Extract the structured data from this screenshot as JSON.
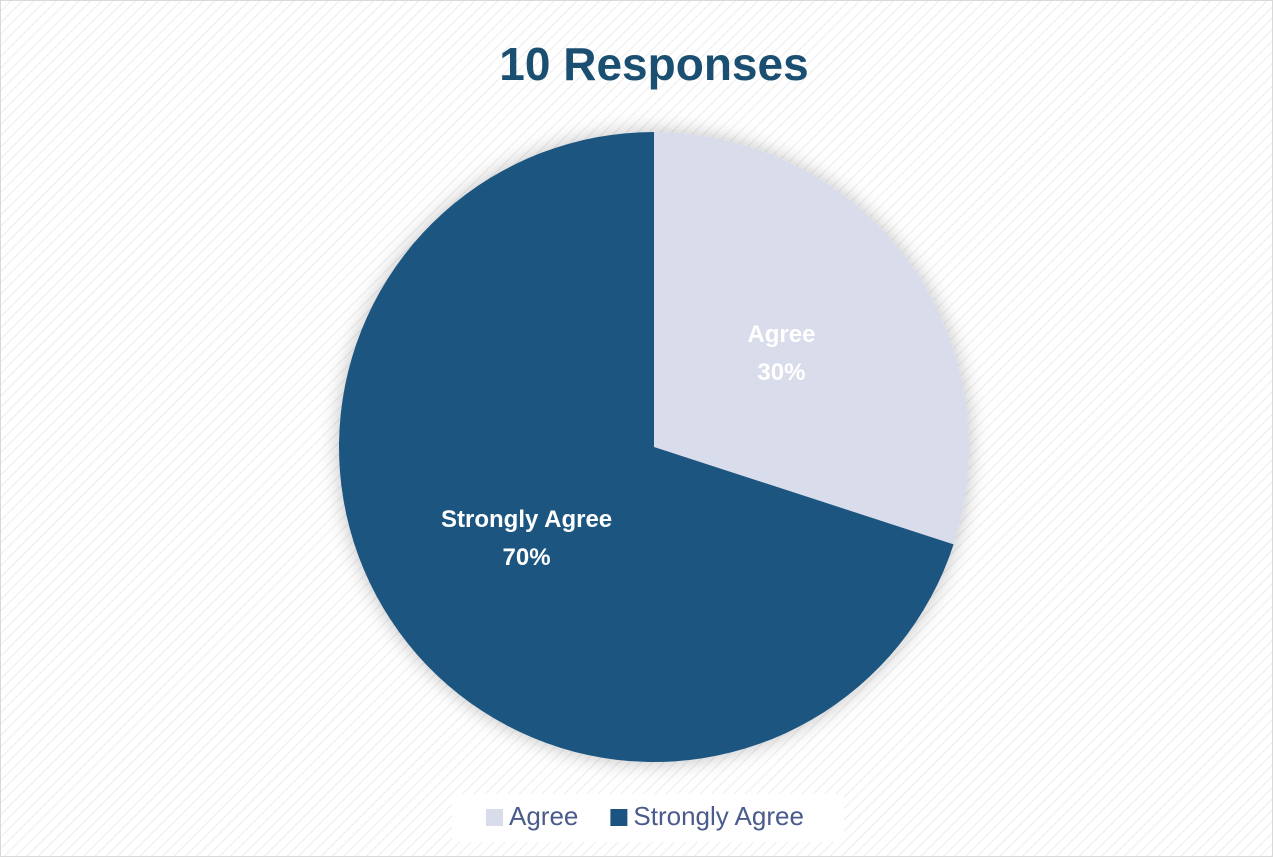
{
  "chart_data": {
    "type": "pie",
    "title": "10 Responses",
    "categories": [
      "Agree",
      "Strongly Agree"
    ],
    "values": [
      30,
      70
    ],
    "value_labels": [
      "30%",
      "70%"
    ],
    "colors": [
      "#d9dcea",
      "#1b5480"
    ],
    "legend": "bottom"
  }
}
